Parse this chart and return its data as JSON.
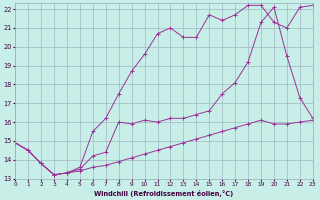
{
  "background_color": "#c8eee8",
  "line_color": "#993399",
  "grid_color": "#99aabb",
  "xlim": [
    0,
    23
  ],
  "ylim": [
    13,
    22.3
  ],
  "yticks": [
    13,
    14,
    15,
    16,
    17,
    18,
    19,
    20,
    21,
    22
  ],
  "xticks": [
    0,
    1,
    2,
    3,
    4,
    5,
    6,
    7,
    8,
    9,
    10,
    11,
    12,
    13,
    14,
    15,
    16,
    17,
    18,
    19,
    20,
    21,
    22,
    23
  ],
  "xlabel": "Windchill (Refroidissement éolien,°C)",
  "line1_x": [
    0,
    1,
    2,
    3,
    4,
    5,
    6,
    7,
    8,
    9,
    10,
    11,
    12,
    13,
    14,
    15,
    16,
    17,
    18,
    19,
    20,
    21,
    22,
    23
  ],
  "line1_y": [
    14.9,
    14.5,
    13.8,
    13.2,
    13.3,
    13.4,
    13.6,
    13.7,
    13.9,
    14.1,
    14.3,
    14.5,
    14.7,
    14.9,
    15.1,
    15.3,
    15.5,
    15.7,
    15.9,
    16.1,
    15.9,
    15.9,
    16.0,
    16.1
  ],
  "line2_x": [
    0,
    1,
    2,
    3,
    4,
    5,
    6,
    7,
    8,
    9,
    10,
    11,
    12,
    13,
    14,
    15,
    16,
    17,
    18,
    19,
    20,
    21,
    22,
    23
  ],
  "line2_y": [
    14.9,
    14.5,
    13.8,
    13.2,
    13.3,
    13.6,
    15.5,
    16.2,
    17.5,
    18.7,
    19.6,
    20.7,
    21.0,
    20.5,
    20.5,
    21.7,
    21.4,
    21.7,
    22.2,
    22.2,
    21.3,
    21.0,
    22.1,
    22.2
  ],
  "line3_x": [
    0,
    1,
    2,
    3,
    4,
    5,
    6,
    7,
    8,
    9,
    10,
    11,
    12,
    13,
    14,
    15,
    16,
    17,
    18,
    19,
    20,
    21,
    22,
    23
  ],
  "line3_y": [
    14.9,
    14.5,
    13.8,
    13.2,
    13.3,
    13.5,
    14.2,
    14.4,
    16.0,
    15.9,
    16.1,
    16.0,
    16.2,
    16.2,
    16.4,
    16.6,
    17.5,
    18.1,
    19.2,
    21.3,
    22.1,
    19.5,
    17.3,
    16.2
  ]
}
